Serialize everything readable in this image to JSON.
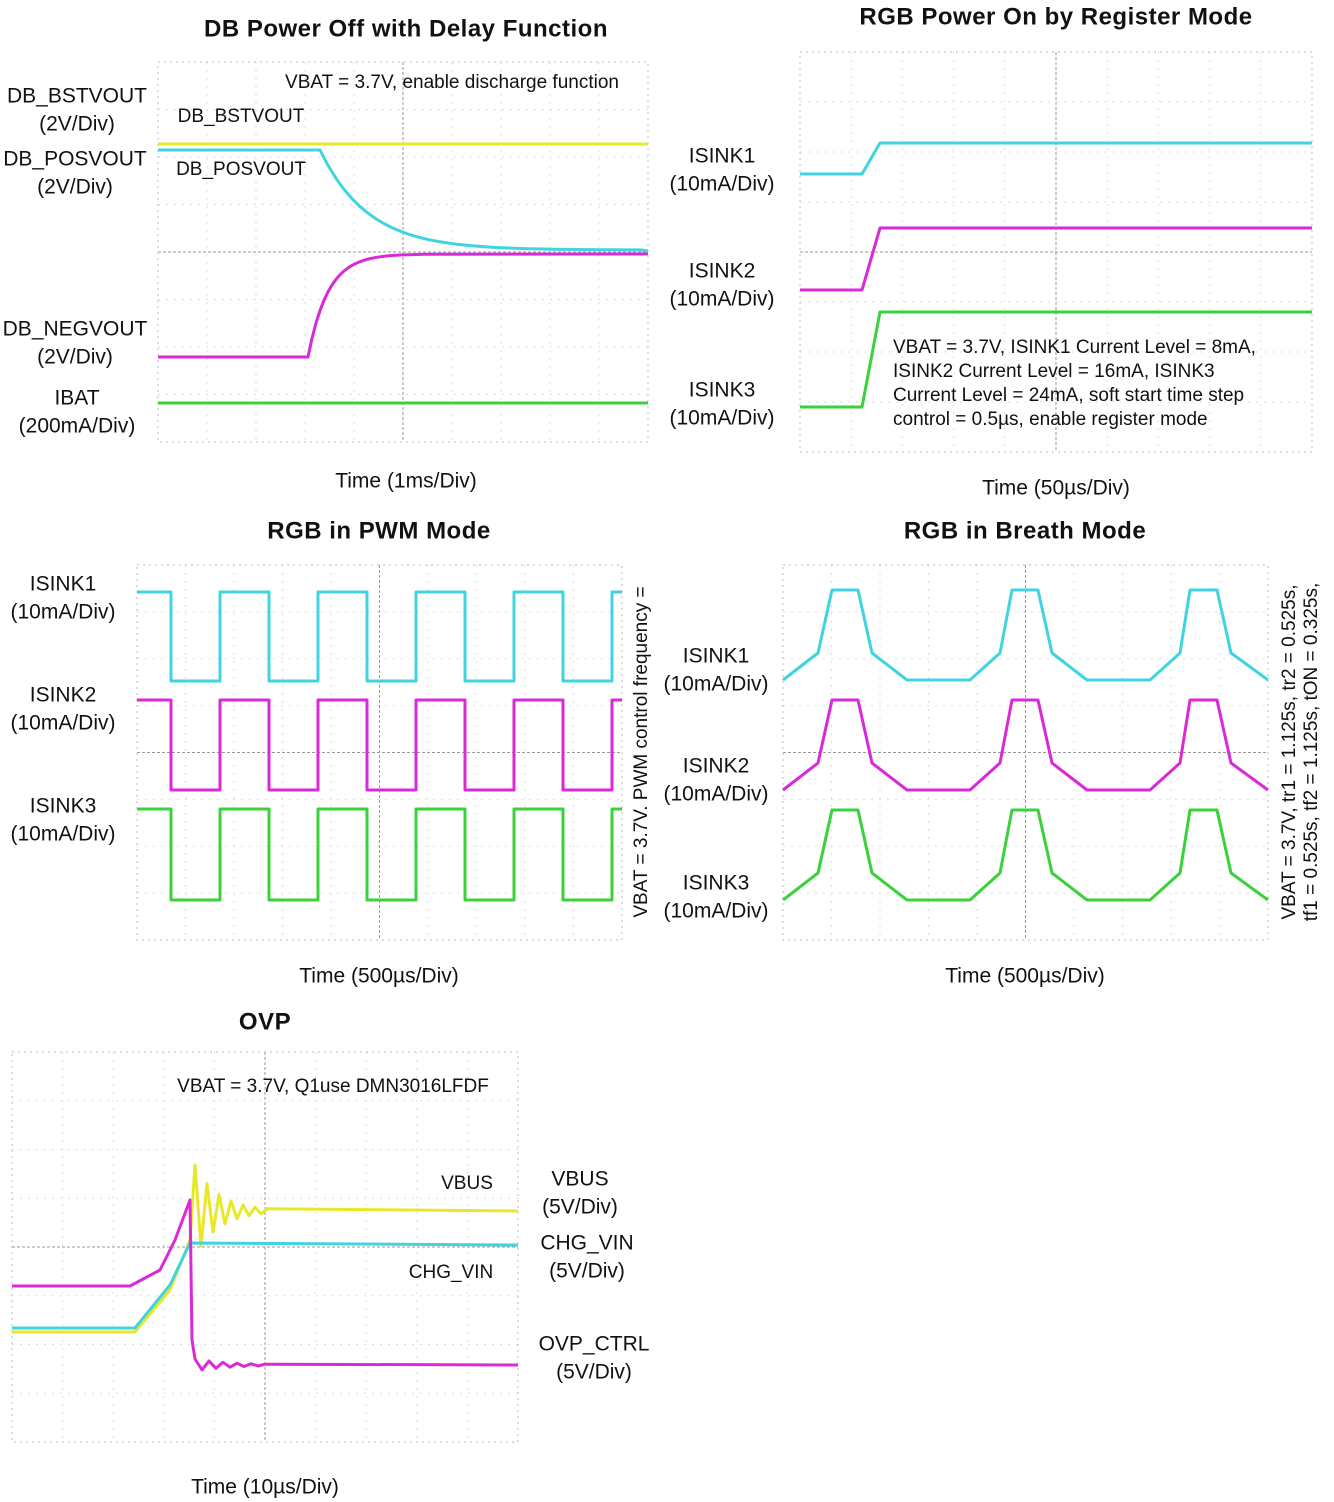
{
  "panels": [
    {
      "title": "DB Power Off with Delay Function",
      "note": [
        "VBAT = 3.7V, enable discharge function"
      ],
      "x_label": "Time (1ms/Div)",
      "channels": [
        {
          "name": "DB_BSTVOUT",
          "scale": "(2V/Div)"
        },
        {
          "name": "DB_POSVOUT",
          "scale": "(2V/Div)"
        },
        {
          "name": "DB_NEGVOUT",
          "scale": "(2V/Div)"
        },
        {
          "name": "IBAT",
          "scale": "(200mA/Div)"
        }
      ],
      "trace_labels": [
        "DB_BSTVOUT",
        "DB_POSVOUT"
      ]
    },
    {
      "title": "RGB Power On by Register Mode",
      "note": [
        "VBAT = 3.7V, ISINK1 Current Level = 8mA,",
        "ISINK2 Current Level = 16mA, ISINK3",
        "Current Level = 24mA, soft start time step",
        "control = 0.5µs, enable register mode"
      ],
      "x_label": "Time (50µs/Div)",
      "channels": [
        {
          "name": "ISINK1",
          "scale": "(10mA/Div)"
        },
        {
          "name": "ISINK2",
          "scale": "(10mA/Div)"
        },
        {
          "name": "ISINK3",
          "scale": "(10mA/Div)"
        }
      ]
    },
    {
      "title": "RGB in PWM Mode",
      "note": [
        "VBAT = 3.7V. PWM control frequency ="
      ],
      "x_label": "Time (500µs/Div)",
      "channels": [
        {
          "name": "ISINK1",
          "scale": "(10mA/Div)"
        },
        {
          "name": "ISINK2",
          "scale": "(10mA/Div)"
        },
        {
          "name": "ISINK3",
          "scale": "(10mA/Div)"
        }
      ]
    },
    {
      "title": "RGB in Breath Mode",
      "note": [
        "VBAT = 3.7V, tr1 = 1.125s, tr2 = 0.525s,",
        "tf1 = 0.525s, tf2 = 1.125s, tON = 0.325s,"
      ],
      "x_label": "Time (500µs/Div)",
      "channels": [
        {
          "name": "ISINK1",
          "scale": "(10mA/Div)"
        },
        {
          "name": "ISINK2",
          "scale": "(10mA/Div)"
        },
        {
          "name": "ISINK3",
          "scale": "(10mA/Div)"
        }
      ]
    },
    {
      "title": "OVP",
      "note": [
        "VBAT = 3.7V, Q1use DMN3016LFDF"
      ],
      "x_label": "Time (10µs/Div)",
      "channels": [
        {
          "name": "VBUS",
          "scale": "(5V/Div)"
        },
        {
          "name": "CHG_VIN",
          "scale": "(5V/Div)"
        },
        {
          "name": "OVP_CTRL",
          "scale": "(5V/Div)"
        }
      ],
      "trace_labels": [
        "VBUS",
        "CHG_VIN"
      ]
    }
  ]
}
